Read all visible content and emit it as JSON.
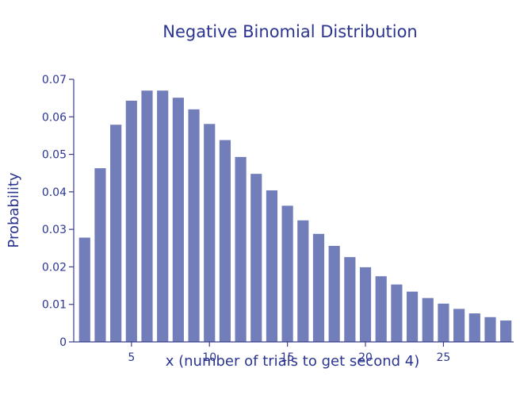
{
  "chart_data": {
    "type": "bar",
    "title": "Negative Binomial Distribution",
    "xlabel": "x (number of trials to get second 4)",
    "ylabel": "Probability",
    "x": [
      2,
      3,
      4,
      5,
      6,
      7,
      8,
      9,
      10,
      11,
      12,
      13,
      14,
      15,
      16,
      17,
      18,
      19,
      20,
      21,
      22,
      23,
      24,
      25,
      26,
      27,
      28,
      29
    ],
    "values": [
      0.0278,
      0.0463,
      0.0579,
      0.0643,
      0.067,
      0.067,
      0.0651,
      0.062,
      0.0581,
      0.0538,
      0.0493,
      0.0448,
      0.0404,
      0.0363,
      0.0324,
      0.0288,
      0.0256,
      0.0226,
      0.0199,
      0.0175,
      0.0153,
      0.0134,
      0.0117,
      0.0102,
      0.0088,
      0.0076,
      0.0066,
      0.0057
    ],
    "xlim": [
      1.3,
      29.5
    ],
    "ylim": [
      0,
      0.07
    ],
    "xticks": [
      5,
      10,
      15,
      20,
      25
    ],
    "yticks": [
      0,
      0.01,
      0.02,
      0.03,
      0.04,
      0.05,
      0.06,
      0.07
    ],
    "ytick_labels": [
      "0",
      "0.01",
      "0.02",
      "0.03",
      "0.04",
      "0.05",
      "0.06",
      "0.07"
    ],
    "grid": false,
    "legend": "none",
    "colors": {
      "bar": "#727eba",
      "text": "#2b3590",
      "axis": "#3a3f8a"
    }
  }
}
